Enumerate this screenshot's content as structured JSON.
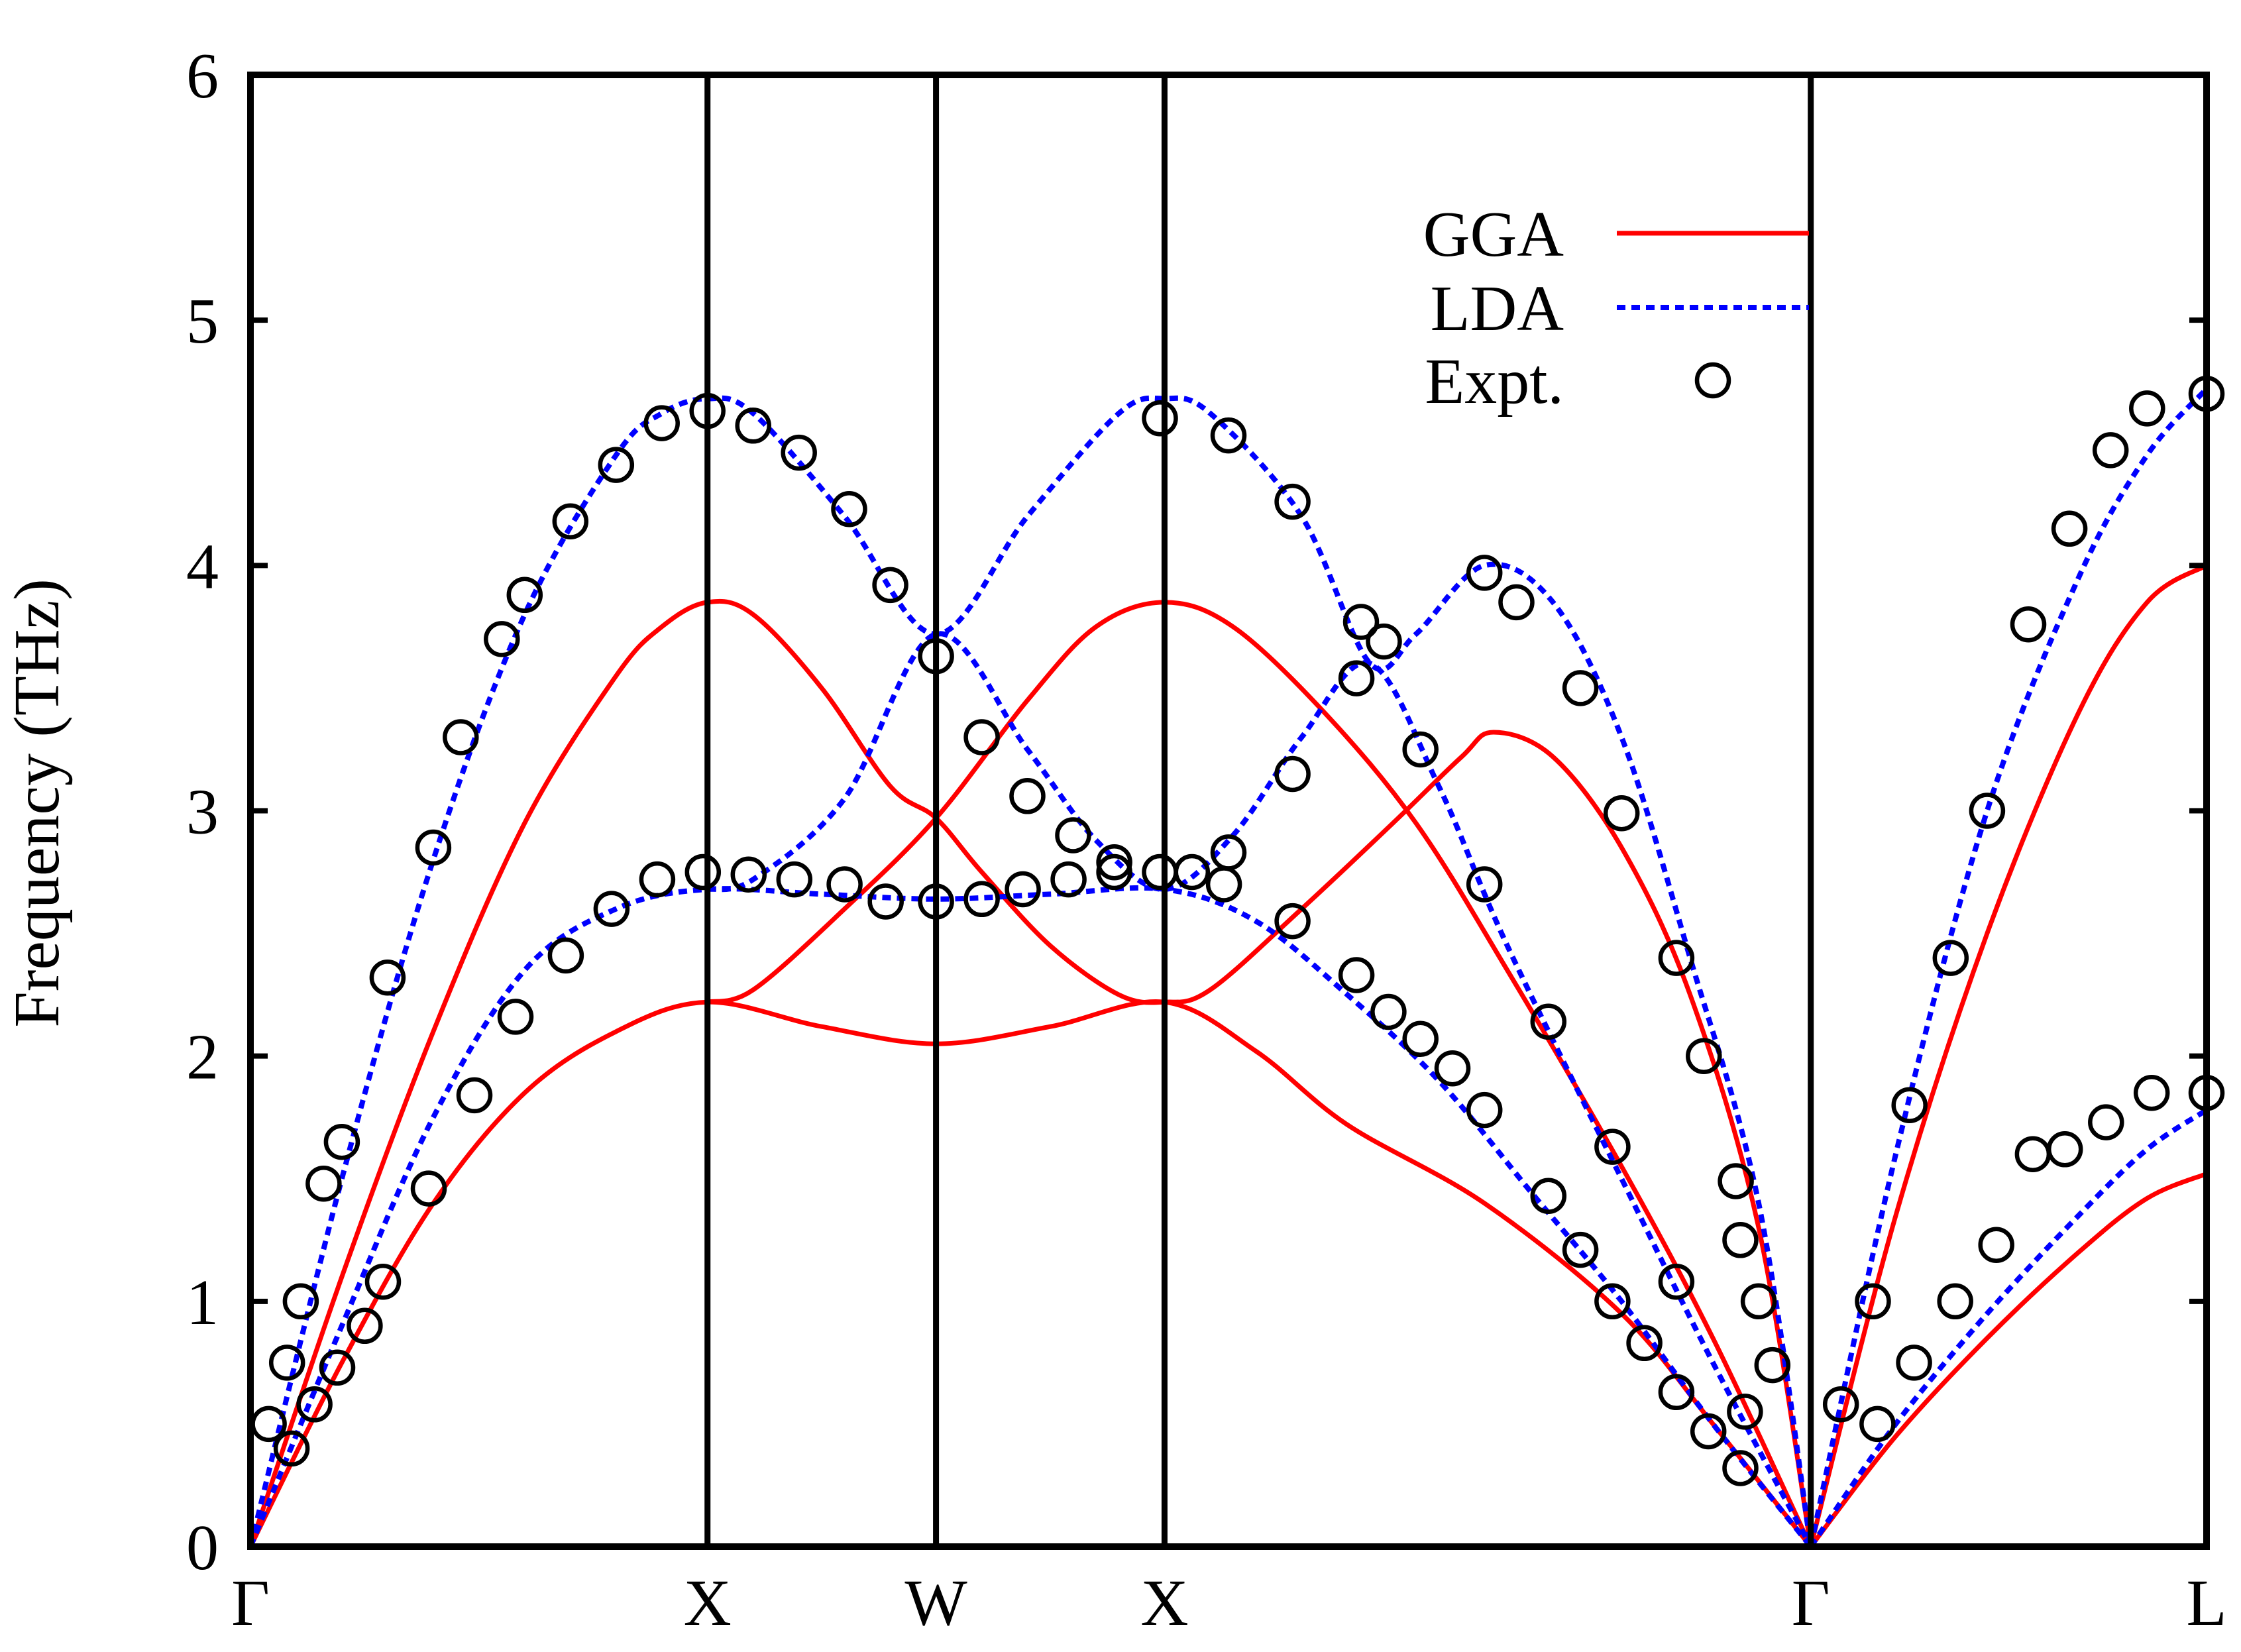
{
  "chart_data": {
    "type": "line",
    "ylabel": "Frequency  (THz)",
    "ylim": [
      0,
      6
    ],
    "yticks": [
      0,
      1,
      2,
      3,
      4,
      5,
      6
    ],
    "grid": false,
    "legend_position": "top-right",
    "x_path": [
      {
        "label": "Γ",
        "pos": 0
      },
      {
        "label": "X",
        "pos": 1
      },
      {
        "label": "W",
        "pos": 1.5
      },
      {
        "label": "X",
        "pos": 2
      },
      {
        "label": "Γ",
        "pos": 3.414
      },
      {
        "label": "L",
        "pos": 4.28
      }
    ],
    "symmetry_lines": [
      1,
      1.5,
      2,
      3.414
    ],
    "colors": {
      "GGA": "#ff0000",
      "LDA": "#0000ff",
      "Expt.": "#000000",
      "axes": "#000000"
    },
    "legend": [
      {
        "label": "GGA",
        "style": "solid-line"
      },
      {
        "label": "LDA",
        "style": "dotted-line"
      },
      {
        "label": "Expt.",
        "style": "open-circle"
      }
    ],
    "series": [
      {
        "name": "GGA",
        "branches": [
          [
            [
              0,
              0
            ],
            [
              0.2,
              1.1
            ],
            [
              0.4,
              2.1
            ],
            [
              0.6,
              2.95
            ],
            [
              0.8,
              3.55
            ],
            [
              0.9,
              3.75
            ],
            [
              1.0,
              3.85
            ],
            [
              1.1,
              3.8
            ],
            [
              1.25,
              3.5
            ],
            [
              1.4,
              3.1
            ],
            [
              1.5,
              2.97
            ],
            [
              1.6,
              2.75
            ],
            [
              1.75,
              2.45
            ],
            [
              1.9,
              2.25
            ],
            [
              2.0,
              2.22
            ],
            [
              2.1,
              2.27
            ],
            [
              2.3,
              2.6
            ],
            [
              2.5,
              2.95
            ],
            [
              2.65,
              3.22
            ],
            [
              2.72,
              3.32
            ],
            [
              2.85,
              3.22
            ],
            [
              3.0,
              2.85
            ],
            [
              3.15,
              2.25
            ],
            [
              3.3,
              1.3
            ],
            [
              3.414,
              0
            ]
          ],
          [
            [
              0,
              0
            ],
            [
              0.2,
              0.75
            ],
            [
              0.4,
              1.4
            ],
            [
              0.6,
              1.85
            ],
            [
              0.8,
              2.1
            ],
            [
              1.0,
              2.22
            ],
            [
              1.25,
              2.12
            ],
            [
              1.5,
              2.05
            ],
            [
              1.75,
              2.12
            ],
            [
              2.0,
              2.22
            ],
            [
              2.2,
              2.02
            ],
            [
              2.4,
              1.72
            ],
            [
              2.7,
              1.4
            ],
            [
              3.0,
              0.95
            ],
            [
              3.2,
              0.5
            ],
            [
              3.414,
              0
            ]
          ],
          [
            [
              1.0,
              2.22
            ],
            [
              1.1,
              2.27
            ],
            [
              1.3,
              2.6
            ],
            [
              1.5,
              2.97
            ],
            [
              1.7,
              3.45
            ],
            [
              1.85,
              3.75
            ],
            [
              2.0,
              3.85
            ],
            [
              2.15,
              3.75
            ],
            [
              2.35,
              3.4
            ],
            [
              2.55,
              2.95
            ],
            [
              2.75,
              2.35
            ],
            [
              3.0,
              1.55
            ],
            [
              3.2,
              0.85
            ],
            [
              3.414,
              0
            ]
          ],
          [
            [
              3.414,
              0
            ],
            [
              3.6,
              1.35
            ],
            [
              3.8,
              2.5
            ],
            [
              4.0,
              3.4
            ],
            [
              4.15,
              3.85
            ],
            [
              4.28,
              4.0
            ]
          ],
          [
            [
              3.414,
              0
            ],
            [
              3.6,
              0.45
            ],
            [
              3.8,
              0.85
            ],
            [
              4.0,
              1.2
            ],
            [
              4.15,
              1.42
            ],
            [
              4.28,
              1.52
            ]
          ]
        ]
      },
      {
        "name": "LDA",
        "branches": [
          [
            [
              0,
              0
            ],
            [
              0.2,
              1.5
            ],
            [
              0.4,
              2.8
            ],
            [
              0.6,
              3.8
            ],
            [
              0.8,
              4.45
            ],
            [
              0.9,
              4.62
            ],
            [
              1.0,
              4.68
            ],
            [
              1.1,
              4.62
            ],
            [
              1.3,
              4.2
            ],
            [
              1.5,
              3.72
            ],
            [
              1.7,
              4.2
            ],
            [
              1.9,
              4.62
            ],
            [
              2.0,
              4.68
            ],
            [
              2.1,
              4.62
            ],
            [
              2.3,
              4.2
            ],
            [
              2.45,
              3.6
            ],
            [
              2.55,
              3.72
            ],
            [
              2.7,
              4.0
            ],
            [
              2.85,
              3.85
            ],
            [
              3.0,
              3.3
            ],
            [
              3.15,
              2.4
            ],
            [
              3.3,
              1.4
            ],
            [
              3.414,
              0
            ]
          ],
          [
            [
              0,
              0
            ],
            [
              0.2,
              0.9
            ],
            [
              0.4,
              1.75
            ],
            [
              0.6,
              2.35
            ],
            [
              0.8,
              2.6
            ],
            [
              1.0,
              2.68
            ],
            [
              1.25,
              2.66
            ],
            [
              1.5,
              2.64
            ],
            [
              1.75,
              2.66
            ],
            [
              2.0,
              2.68
            ],
            [
              2.2,
              2.55
            ],
            [
              2.4,
              2.25
            ],
            [
              2.6,
              1.9
            ],
            [
              2.8,
              1.45
            ],
            [
              3.0,
              1.0
            ],
            [
              3.2,
              0.5
            ],
            [
              3.414,
              0
            ]
          ],
          [
            [
              1.0,
              2.68
            ],
            [
              1.1,
              2.72
            ],
            [
              1.3,
              3.05
            ],
            [
              1.5,
              3.72
            ],
            [
              1.7,
              3.25
            ],
            [
              1.85,
              2.88
            ],
            [
              2.0,
              2.68
            ],
            [
              2.15,
              2.9
            ],
            [
              2.3,
              3.3
            ],
            [
              2.45,
              3.6
            ],
            [
              2.6,
              3.1
            ],
            [
              2.75,
              2.45
            ],
            [
              3.0,
              1.5
            ],
            [
              3.2,
              0.75
            ],
            [
              3.414,
              0
            ]
          ],
          [
            [
              3.414,
              0
            ],
            [
              3.6,
              1.6
            ],
            [
              3.8,
              3.0
            ],
            [
              4.0,
              3.95
            ],
            [
              4.15,
              4.45
            ],
            [
              4.28,
              4.72
            ]
          ],
          [
            [
              3.414,
              0
            ],
            [
              3.6,
              0.5
            ],
            [
              3.8,
              0.95
            ],
            [
              4.0,
              1.35
            ],
            [
              4.15,
              1.62
            ],
            [
              4.28,
              1.78
            ]
          ]
        ]
      },
      {
        "name": "Expt.",
        "points": [
          [
            0.04,
            0.5
          ],
          [
            0.08,
            0.75
          ],
          [
            0.09,
            0.4
          ],
          [
            0.11,
            1.0
          ],
          [
            0.14,
            0.58
          ],
          [
            0.16,
            1.48
          ],
          [
            0.19,
            0.73
          ],
          [
            0.2,
            1.65
          ],
          [
            0.25,
            0.9
          ],
          [
            0.29,
            1.08
          ],
          [
            0.3,
            2.32
          ],
          [
            0.39,
            1.46
          ],
          [
            0.4,
            2.85
          ],
          [
            0.46,
            3.3
          ],
          [
            0.49,
            1.84
          ],
          [
            0.55,
            3.7
          ],
          [
            0.58,
            2.16
          ],
          [
            0.6,
            3.88
          ],
          [
            0.69,
            2.41
          ],
          [
            0.7,
            4.18
          ],
          [
            0.79,
            2.6
          ],
          [
            0.8,
            4.41
          ],
          [
            0.89,
            2.72
          ],
          [
            0.9,
            4.58
          ],
          [
            0.99,
            2.75
          ],
          [
            1.0,
            4.63
          ],
          [
            1.09,
            2.74
          ],
          [
            1.1,
            4.57
          ],
          [
            1.19,
            2.72
          ],
          [
            1.2,
            4.46
          ],
          [
            1.3,
            2.7
          ],
          [
            1.31,
            4.23
          ],
          [
            1.39,
            2.63
          ],
          [
            1.4,
            3.92
          ],
          [
            1.5,
            2.63
          ],
          [
            1.5,
            3.63
          ],
          [
            1.6,
            2.64
          ],
          [
            1.6,
            3.3
          ],
          [
            1.69,
            2.68
          ],
          [
            1.7,
            3.06
          ],
          [
            1.79,
            2.72
          ],
          [
            1.8,
            2.9
          ],
          [
            1.89,
            2.75
          ],
          [
            1.89,
            2.79
          ],
          [
            1.99,
            2.75
          ],
          [
            1.99,
            4.6
          ],
          [
            2.06,
            2.75
          ],
          [
            2.13,
            2.7
          ],
          [
            2.14,
            2.83
          ],
          [
            2.14,
            4.53
          ],
          [
            2.28,
            2.55
          ],
          [
            2.28,
            3.15
          ],
          [
            2.28,
            4.26
          ],
          [
            2.42,
            2.33
          ],
          [
            2.42,
            3.54
          ],
          [
            2.43,
            3.77
          ],
          [
            2.49,
            2.18
          ],
          [
            2.48,
            3.69
          ],
          [
            2.56,
            2.07
          ],
          [
            2.56,
            3.25
          ],
          [
            2.63,
            1.95
          ],
          [
            2.7,
            1.78
          ],
          [
            2.7,
            2.7
          ],
          [
            2.7,
            3.97
          ],
          [
            2.77,
            3.85
          ],
          [
            2.84,
            1.43
          ],
          [
            2.84,
            2.14
          ],
          [
            2.91,
            1.21
          ],
          [
            2.91,
            3.5
          ],
          [
            2.98,
            1.0
          ],
          [
            2.98,
            1.63
          ],
          [
            3.0,
            2.99
          ],
          [
            3.05,
            0.83
          ],
          [
            3.12,
            0.63
          ],
          [
            3.12,
            1.08
          ],
          [
            3.12,
            2.4
          ],
          [
            3.19,
            0.47
          ],
          [
            3.18,
            2.0
          ],
          [
            3.26,
            0.32
          ],
          [
            3.25,
            1.49
          ],
          [
            3.26,
            1.25
          ],
          [
            3.27,
            0.55
          ],
          [
            3.3,
            1.0
          ],
          [
            3.33,
            0.74
          ],
          [
            3.48,
            0.58
          ],
          [
            3.55,
            1.0
          ],
          [
            3.56,
            0.5
          ],
          [
            3.63,
            1.8
          ],
          [
            3.64,
            0.75
          ],
          [
            3.72,
            2.4
          ],
          [
            3.73,
            1.0
          ],
          [
            3.8,
            3.0
          ],
          [
            3.82,
            1.23
          ],
          [
            3.9,
            1.6
          ],
          [
            3.89,
            3.76
          ],
          [
            3.97,
            1.62
          ],
          [
            3.98,
            4.15
          ],
          [
            4.06,
            1.73
          ],
          [
            4.07,
            4.47
          ],
          [
            4.16,
            1.85
          ],
          [
            4.15,
            4.64
          ],
          [
            4.28,
            1.85
          ],
          [
            4.28,
            4.7
          ]
        ]
      }
    ]
  }
}
